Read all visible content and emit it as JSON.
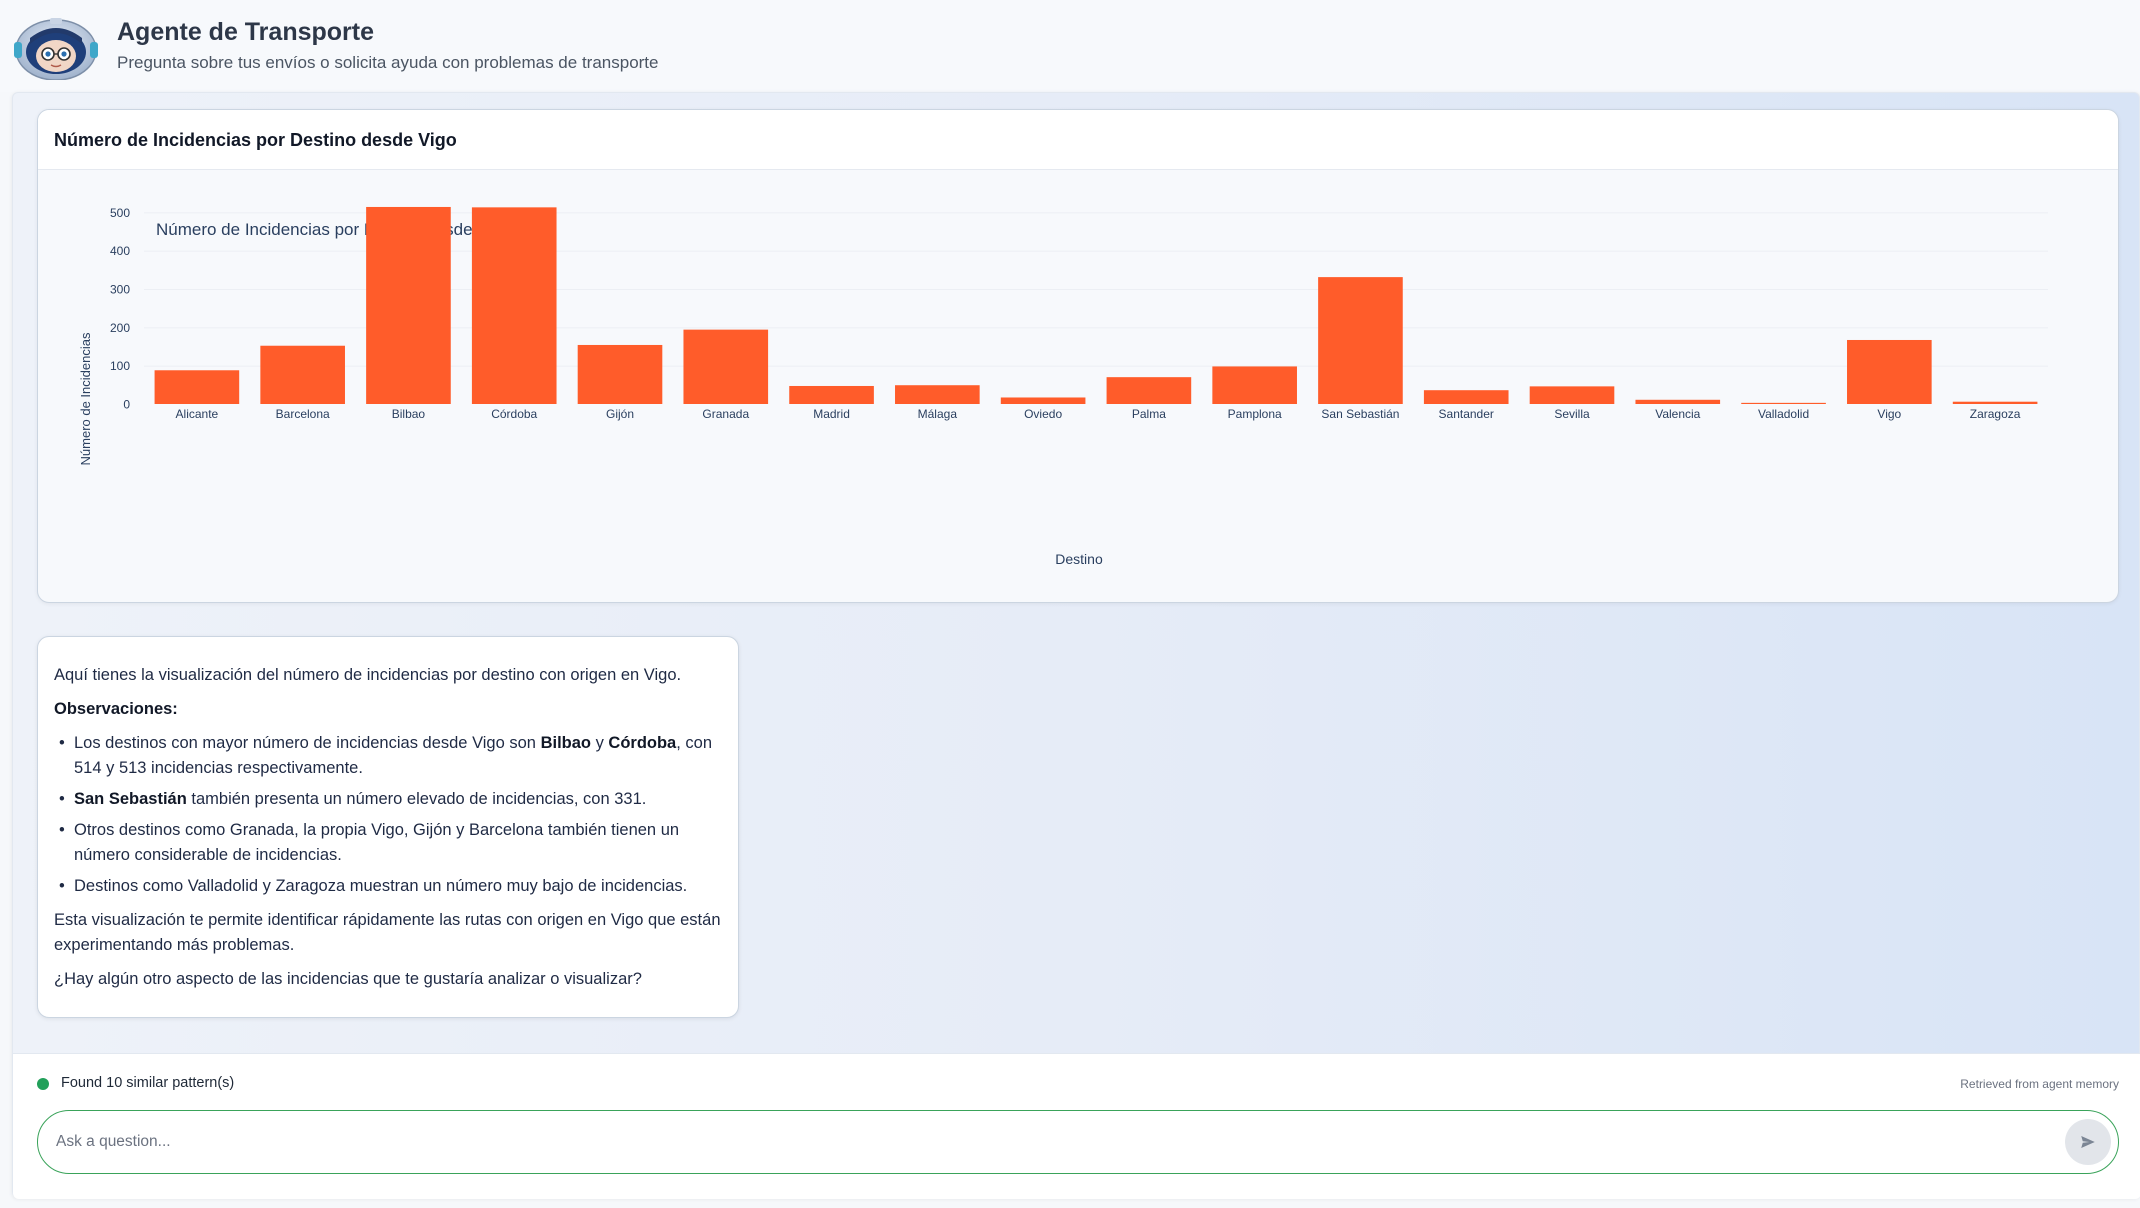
{
  "header": {
    "title": "Agente de Transporte",
    "subtitle": "Pregunta sobre tus envíos o solicita ayuda con problemas de transporte"
  },
  "chart_card": {
    "title": "Número de Incidencias por Destino desde Vigo"
  },
  "chart_data": {
    "type": "bar",
    "title": "Número de Incidencias por Destino desde Vigo",
    "xlabel": "Destino",
    "ylabel": "Número de Incidencias",
    "categories": [
      "Alicante",
      "Barcelona",
      "Bilbao",
      "Córdoba",
      "Gijón",
      "Granada",
      "Madrid",
      "Málaga",
      "Oviedo",
      "Palma",
      "Pamplona",
      "San Sebastián",
      "Santander",
      "Sevilla",
      "Valencia",
      "Valladolid",
      "Vigo",
      "Zaragoza"
    ],
    "values": [
      88,
      152,
      514,
      513,
      154,
      194,
      47,
      49,
      17,
      70,
      98,
      331,
      36,
      46,
      11,
      3,
      167,
      6
    ],
    "ylim": [
      0,
      540
    ],
    "yticks": [
      0,
      100,
      200,
      300,
      400,
      500
    ],
    "grid": true,
    "bar_color": "#ff5c2a"
  },
  "message": {
    "intro": "Aquí tienes la visualización del número de incidencias por destino con origen en Vigo.",
    "obs_heading": "Observaciones:",
    "b1_pre": "Los destinos con mayor número de incidencias desde Vigo son ",
    "b1_bilbao": "Bilbao",
    "b1_and": " y ",
    "b1_cordoba": "Córdoba",
    "b1_post": ", con 514 y 513 incidencias respectivamente.",
    "b2_city": "San Sebastián",
    "b2_post": " también presenta un número elevado de incidencias, con 331.",
    "b3": "Otros destinos como Granada, la propia Vigo, Gijón y Barcelona también tienen un número considerable de incidencias.",
    "b4": "Destinos como Valladolid y Zaragoza muestran un número muy bajo de incidencias.",
    "summary": "Esta visualización te permite identificar rápidamente las rutas con origen en Vigo que están experimentando más problemas.",
    "question": "¿Hay algún otro aspecto de las incidencias que te gustaría analizar o visualizar?"
  },
  "status": {
    "text": "Found 10 similar pattern(s)",
    "memory": "Retrieved from agent memory",
    "dot_color": "#22a05a"
  },
  "input": {
    "placeholder": "Ask a question..."
  },
  "icons": {
    "avatar": "robot-avatar-icon",
    "send": "send-icon"
  }
}
